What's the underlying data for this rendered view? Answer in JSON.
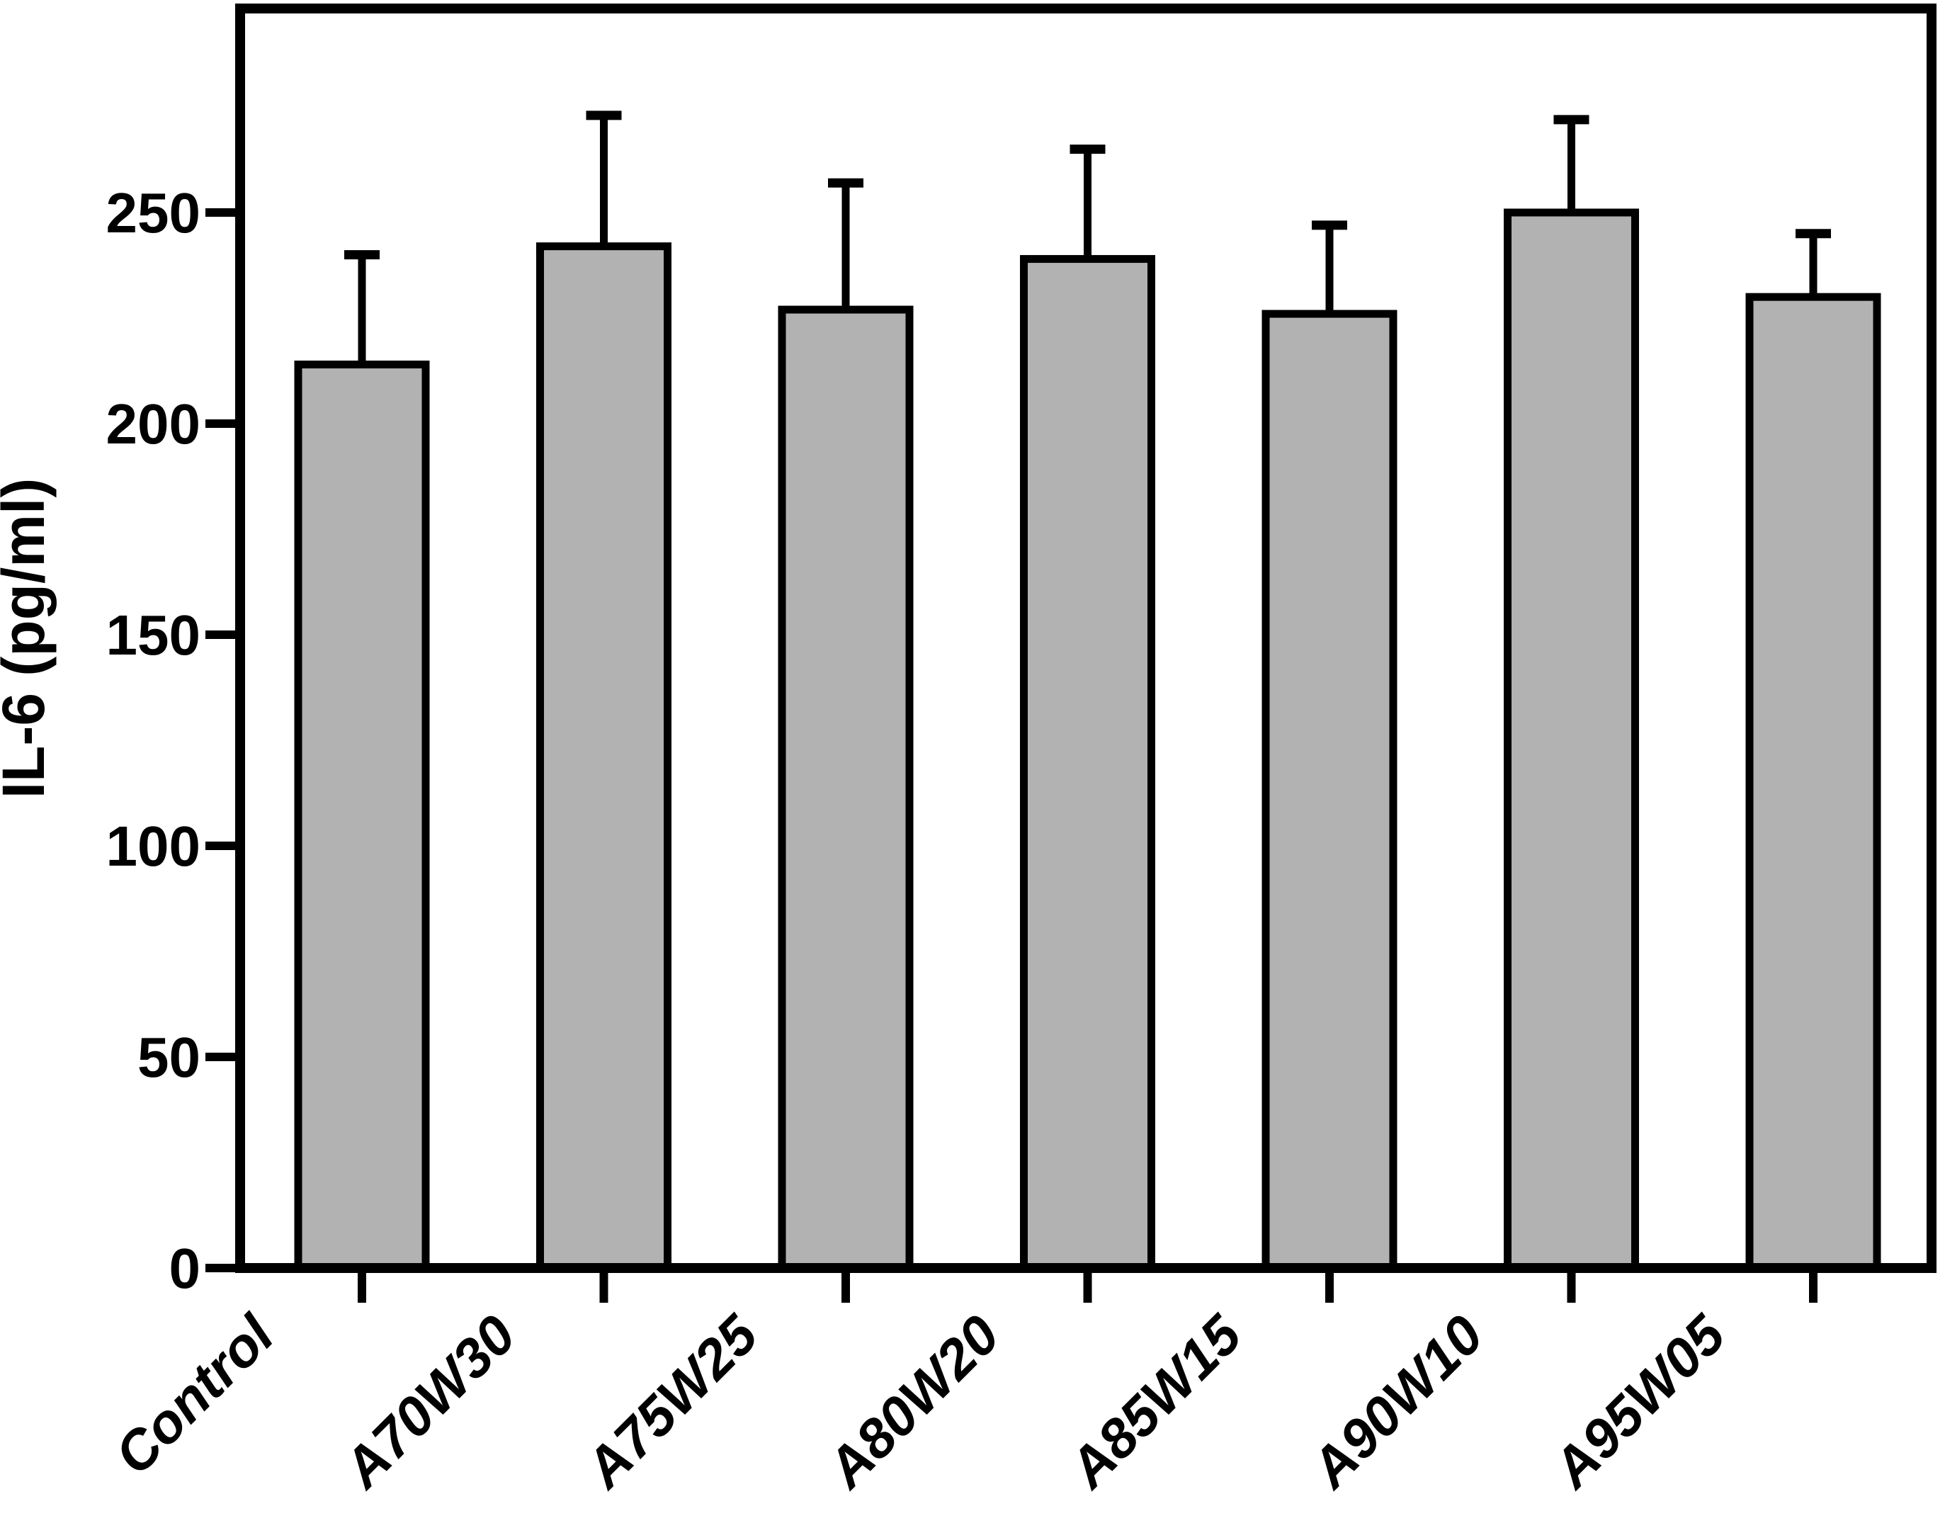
{
  "figure": {
    "background_color": "#ffffff"
  },
  "chart_data": {
    "type": "bar",
    "title": "",
    "xlabel": "",
    "ylabel": "IL-6 (pg/ml)",
    "categories": [
      "Control",
      "A70W30",
      "A75W25",
      "A80W20",
      "A85W15",
      "A90W10",
      "A95W05"
    ],
    "values": [
      214,
      242,
      227,
      239,
      226,
      250,
      230
    ],
    "errors_plus": [
      26,
      31,
      30,
      26,
      21,
      22,
      15
    ],
    "error_bar_direction": "upper-only",
    "yticks": [
      "0",
      "50",
      "100",
      "150",
      "200",
      "250"
    ],
    "ytick_values": [
      0,
      50,
      100,
      150,
      200,
      250
    ],
    "ylim": [
      0,
      298
    ],
    "grid": false,
    "legend": null,
    "bar_fill_color": "#b2b2b2",
    "bar_edge_color": "#000000",
    "axis_color": "#000000",
    "error_bar_color": "#000000",
    "x_tick_label_rotation_deg": 45
  }
}
